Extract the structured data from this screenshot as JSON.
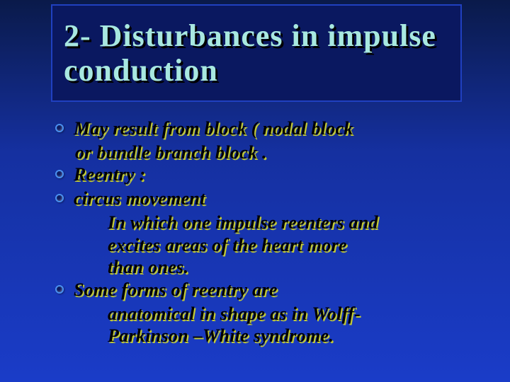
{
  "slide": {
    "title": "2- Disturbances in impulse conduction",
    "bullets": [
      {
        "lead": " May result from block ( nodal block",
        "cont": [
          "or bundle branch block ."
        ]
      },
      {
        "lead": "Reentry :",
        "cont": []
      },
      {
        "lead": " circus movement",
        "cont": [
          "In which one impulse reenters and",
          "excites areas of the heart more",
          "than ones."
        ],
        "cont_indent": true
      },
      {
        "lead": "Some forms of reentry are",
        "cont": [
          "anatomical in shape as in Wolff-",
          "Parkinson –White syndrome."
        ],
        "cont_indent": true
      }
    ]
  },
  "style": {
    "bg_gradient_top": "#0a1a4a",
    "bg_gradient_bottom": "#1a3cc8",
    "title_color": "#a8e8e0",
    "title_shadow": "#000000",
    "title_box_bg": "#0a1860",
    "title_box_border": "#2040c0",
    "bullet_text_color": "#000000",
    "bullet_shadow_color": "#c0c838",
    "bullet_dot_fill": "#0d1a60",
    "bullet_dot_border": "#4a90f0",
    "title_fontsize": 44,
    "body_fontsize": 26
  }
}
